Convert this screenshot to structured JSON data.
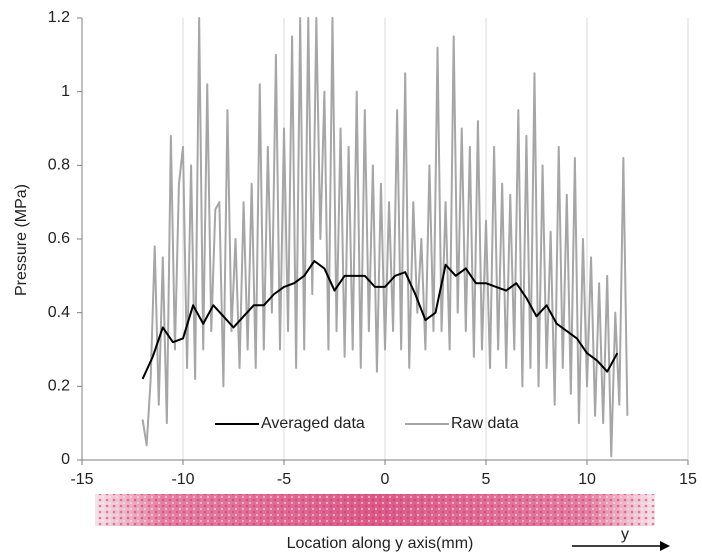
{
  "chart_data": {
    "type": "line",
    "xlabel": "Location along y axis(mm)",
    "ylabel": "Pressure (MPa)",
    "annotation": "y",
    "xlim": [
      -15,
      15
    ],
    "xticks": [
      -15,
      -10,
      -5,
      0,
      5,
      10,
      15
    ],
    "ylim": [
      0,
      1.2
    ],
    "yticks": [
      0,
      0.2,
      0.4,
      0.6,
      0.8,
      1,
      1.2
    ],
    "grid": "x",
    "legend": "bottom",
    "series": [
      {
        "name": "Averaged data",
        "color": "#000000",
        "width": 2,
        "x": [
          -12,
          -11.5,
          -11,
          -10.5,
          -10,
          -9.5,
          -9,
          -8.5,
          -8,
          -7.5,
          -7,
          -6.5,
          -6,
          -5.5,
          -5,
          -4.5,
          -4,
          -3.5,
          -3,
          -2.5,
          -2,
          -1.5,
          -1,
          -0.5,
          0,
          0.5,
          1,
          1.5,
          2,
          2.5,
          3,
          3.5,
          4,
          4.5,
          5,
          5.5,
          6,
          6.5,
          7,
          7.5,
          8,
          8.5,
          9,
          9.5,
          10,
          10.5,
          11,
          11.5
        ],
        "values": [
          0.22,
          0.28,
          0.36,
          0.32,
          0.33,
          0.42,
          0.37,
          0.42,
          0.39,
          0.36,
          0.39,
          0.42,
          0.42,
          0.45,
          0.47,
          0.48,
          0.5,
          0.54,
          0.52,
          0.46,
          0.5,
          0.5,
          0.5,
          0.47,
          0.47,
          0.5,
          0.51,
          0.45,
          0.38,
          0.4,
          0.53,
          0.5,
          0.52,
          0.48,
          0.48,
          0.47,
          0.46,
          0.48,
          0.44,
          0.39,
          0.42,
          0.37,
          0.35,
          0.33,
          0.29,
          0.27,
          0.24,
          0.29
        ]
      },
      {
        "name": "Raw data",
        "color": "#a6a6a6",
        "width": 2,
        "x": [
          -12,
          -11.8,
          -11.6,
          -11.4,
          -11.2,
          -11,
          -10.8,
          -10.6,
          -10.4,
          -10.2,
          -10,
          -9.8,
          -9.6,
          -9.4,
          -9.2,
          -9,
          -8.8,
          -8.6,
          -8.4,
          -8.2,
          -8,
          -7.8,
          -7.6,
          -7.4,
          -7.2,
          -7,
          -6.8,
          -6.6,
          -6.4,
          -6.2,
          -6,
          -5.8,
          -5.6,
          -5.4,
          -5.2,
          -5,
          -4.8,
          -4.6,
          -4.4,
          -4.2,
          -4,
          -3.8,
          -3.6,
          -3.4,
          -3.2,
          -3,
          -2.8,
          -2.6,
          -2.4,
          -2.2,
          -2,
          -1.8,
          -1.6,
          -1.4,
          -1.2,
          -1,
          -0.8,
          -0.6,
          -0.4,
          -0.2,
          0,
          0.2,
          0.4,
          0.6,
          0.8,
          1,
          1.2,
          1.4,
          1.6,
          1.8,
          2,
          2.2,
          2.4,
          2.6,
          2.8,
          3,
          3.2,
          3.4,
          3.6,
          3.8,
          4,
          4.2,
          4.4,
          4.6,
          4.8,
          5,
          5.2,
          5.4,
          5.6,
          5.8,
          6,
          6.2,
          6.4,
          6.6,
          6.8,
          7,
          7.2,
          7.4,
          7.6,
          7.8,
          8,
          8.2,
          8.4,
          8.6,
          8.8,
          9,
          9.2,
          9.4,
          9.6,
          9.8,
          10,
          10.2,
          10.4,
          10.6,
          10.8,
          11,
          11.2,
          11.4,
          11.6,
          11.8,
          12
        ],
        "values": [
          0.11,
          0.04,
          0.22,
          0.58,
          0.15,
          0.55,
          0.1,
          0.88,
          0.3,
          0.75,
          0.85,
          0.25,
          0.8,
          0.22,
          1.2,
          0.3,
          1.02,
          0.35,
          0.68,
          0.7,
          0.2,
          0.95,
          0.35,
          0.6,
          0.25,
          0.7,
          0.3,
          0.75,
          0.25,
          1.02,
          0.3,
          0.85,
          0.4,
          1.1,
          0.3,
          0.9,
          0.35,
          1.15,
          0.25,
          1.2,
          0.3,
          1.2,
          0.45,
          1.2,
          0.6,
          1,
          0.3,
          1.2,
          0.35,
          0.9,
          0.28,
          0.85,
          0.3,
          1,
          0.25,
          0.95,
          0.35,
          0.8,
          0.24,
          0.75,
          0.3,
          0.7,
          0.35,
          0.95,
          0.3,
          1.05,
          0.25,
          0.7,
          0.4,
          0.6,
          0.3,
          0.8,
          0.35,
          1.12,
          0.35,
          0.7,
          0.3,
          1.15,
          0.4,
          0.9,
          0.35,
          0.85,
          0.28,
          0.92,
          0.3,
          0.65,
          0.25,
          0.85,
          0.3,
          0.75,
          0.25,
          0.72,
          0.3,
          0.95,
          0.2,
          0.88,
          0.25,
          1.05,
          0.2,
          0.8,
          0.25,
          0.62,
          0.15,
          0.85,
          0.25,
          0.72,
          0.18,
          0.82,
          0.1,
          0.6,
          0.2,
          0.55,
          0.12,
          0.48,
          0.1,
          0.5,
          0.01,
          0.4,
          0.15,
          0.82,
          0.12
        ]
      }
    ]
  }
}
